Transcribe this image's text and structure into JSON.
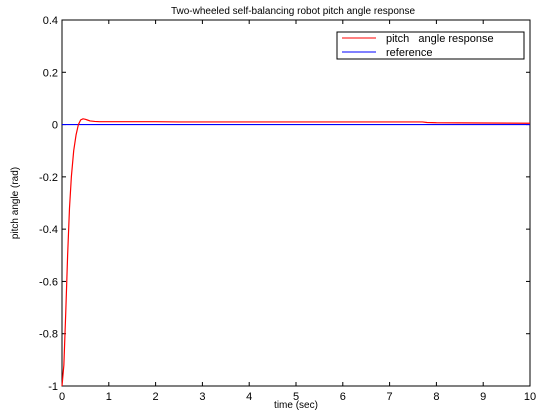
{
  "chart_data": {
    "type": "line",
    "title": "Two-wheeled self-balancing robot pitch angle response",
    "xlabel": "time (sec)",
    "ylabel": "pitch angle (rad)",
    "xlim": [
      0,
      10
    ],
    "ylim": [
      -1,
      0.4
    ],
    "x_ticks": [
      "0",
      "1",
      "2",
      "3",
      "4",
      "5",
      "6",
      "7",
      "8",
      "9",
      "10"
    ],
    "y_ticks": [
      "0.4",
      "0.2",
      "0",
      "-0.2",
      "-0.4",
      "-0.6",
      "-0.8",
      "-1"
    ],
    "x_tick_values": [
      0,
      1,
      2,
      3,
      4,
      5,
      6,
      7,
      8,
      9,
      10
    ],
    "y_tick_values": [
      0.4,
      0.2,
      0,
      -0.2,
      -0.4,
      -0.6,
      -0.8,
      -1
    ],
    "grid": false,
    "legend_position": "top-right",
    "series": [
      {
        "name": "pitch   angle response",
        "color": "#ff0000",
        "x": [
          0,
          0.04,
          0.08,
          0.12,
          0.16,
          0.2,
          0.25,
          0.3,
          0.35,
          0.4,
          0.45,
          0.5,
          0.55,
          0.6,
          0.7,
          0.8,
          1.0,
          1.5,
          2.0,
          2.5,
          3.0,
          4.0,
          5.0,
          6.0,
          7.0,
          7.7,
          7.8,
          8.0,
          9.0,
          10.0
        ],
        "values": [
          -1.0,
          -0.92,
          -0.72,
          -0.5,
          -0.32,
          -0.2,
          -0.1,
          -0.04,
          0.0,
          0.018,
          0.022,
          0.02,
          0.017,
          0.014,
          0.012,
          0.011,
          0.011,
          0.011,
          0.011,
          0.01,
          0.01,
          0.01,
          0.01,
          0.01,
          0.01,
          0.01,
          0.008,
          0.007,
          0.006,
          0.005
        ]
      },
      {
        "name": "reference",
        "color": "#0000ff",
        "x": [
          0,
          10
        ],
        "values": [
          0,
          0
        ]
      }
    ]
  }
}
